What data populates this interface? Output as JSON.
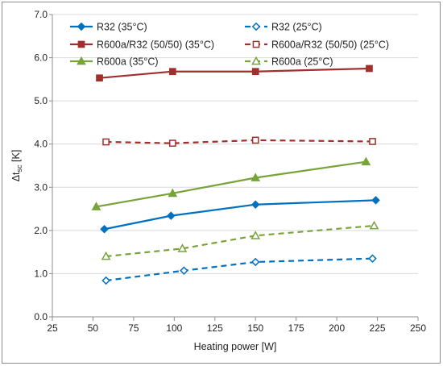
{
  "chart_data": {
    "type": "line",
    "title": "",
    "xlabel": "Heating power [W]",
    "ylabel_main": "Δt",
    "ylabel_sub": "sc",
    "ylabel_unit": " [K]",
    "xlim": [
      25,
      250
    ],
    "ylim": [
      0,
      7
    ],
    "xticks": [
      25,
      50,
      75,
      100,
      125,
      150,
      175,
      200,
      225,
      250
    ],
    "yticks": [
      0,
      1,
      2,
      3,
      4,
      5,
      6,
      7
    ],
    "ytick_labels": [
      "0.0",
      "1.0",
      "2.0",
      "3.0",
      "4.0",
      "5.0",
      "6.0",
      "7.0"
    ],
    "grid": "horizontal",
    "legend_position": "top",
    "series": [
      {
        "name": "R32 (35°C)",
        "color": "#0070C0",
        "marker": "diamond",
        "filled": true,
        "dashed": false,
        "x": [
          57,
          98,
          150,
          224
        ],
        "y": [
          2.03,
          2.34,
          2.6,
          2.7
        ]
      },
      {
        "name": "R32 (25°C)",
        "color": "#0070C0",
        "marker": "diamond",
        "filled": false,
        "dashed": true,
        "x": [
          58,
          106,
          150,
          222
        ],
        "y": [
          0.84,
          1.07,
          1.27,
          1.35
        ]
      },
      {
        "name": "R600a/R32 (50/50) (35°C)",
        "color": "#A0302D",
        "marker": "square",
        "filled": true,
        "dashed": false,
        "x": [
          54,
          99,
          150,
          220
        ],
        "y": [
          5.53,
          5.68,
          5.68,
          5.75
        ]
      },
      {
        "name": "R600a/R32 (50/50) (25°C)",
        "color": "#A0302D",
        "marker": "square",
        "filled": false,
        "dashed": true,
        "x": [
          58,
          99,
          150,
          222
        ],
        "y": [
          4.05,
          4.02,
          4.09,
          4.06
        ]
      },
      {
        "name": "R600a (35°C)",
        "color": "#77A33A",
        "marker": "triangle",
        "filled": true,
        "dashed": false,
        "x": [
          52,
          99,
          150,
          218
        ],
        "y": [
          2.55,
          2.86,
          3.22,
          3.59
        ]
      },
      {
        "name": "R600a (25°C)",
        "color": "#77A33A",
        "marker": "triangle",
        "filled": false,
        "dashed": true,
        "x": [
          58,
          105,
          150,
          223
        ],
        "y": [
          1.4,
          1.58,
          1.88,
          2.11
        ]
      }
    ]
  }
}
